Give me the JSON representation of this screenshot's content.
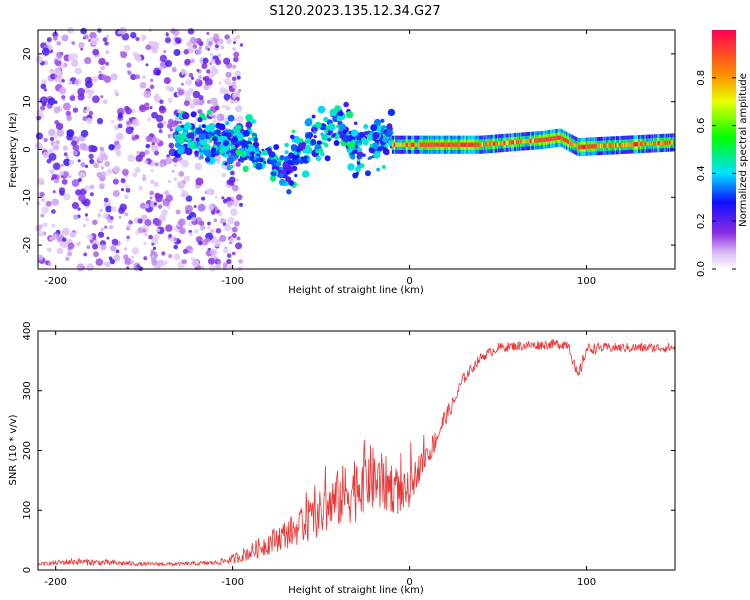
{
  "page_title": "S120.2023.135.12.34.G27",
  "chart_data": [
    {
      "type": "heatmap",
      "title": "S120.2023.135.12.34.G27",
      "xlabel": "Height of straight line (km)",
      "ylabel": "Frequency (Hz)",
      "xlim": [
        -210,
        150
      ],
      "ylim": [
        -25,
        25
      ],
      "x_ticks": [
        -200,
        -100,
        0,
        100
      ],
      "x_tick_labels": [
        "-200",
        "-100",
        "0",
        "100"
      ],
      "y_ticks": [
        -20,
        -10,
        0,
        10,
        20
      ],
      "y_tick_labels": [
        "-20",
        "-10",
        "0",
        "10",
        "20"
      ],
      "colorbar": {
        "label": "Normalized spectral amplitude",
        "range": [
          0,
          1
        ],
        "ticks": [
          0,
          0.2,
          0.4,
          0.6,
          0.8
        ],
        "tick_labels": [
          "0.0",
          "0.2",
          "0.4",
          "0.6",
          "0.8"
        ],
        "colormap": "rainbow (white → violet → blue → cyan → green → yellow → orange → red)"
      },
      "features": [
        {
          "name": "diffuse-noise",
          "x_range": [
            -210,
            -115
          ],
          "freq_range": [
            -25,
            25
          ],
          "amplitude": [
            0.05,
            0.2
          ]
        },
        {
          "name": "fragmented-tone",
          "x_range": [
            -132,
            -10
          ],
          "freq_center": [
            [
              -130,
              2
            ],
            [
              -100,
              2
            ],
            [
              -85,
              0
            ],
            [
              -75,
              -5
            ],
            [
              -65,
              -2
            ],
            [
              -50,
              3
            ],
            [
              -40,
              6
            ],
            [
              -30,
              0
            ],
            [
              -15,
              2
            ]
          ],
          "amplitude": [
            0.2,
            0.5
          ]
        },
        {
          "name": "stable-tone",
          "x_range": [
            -10,
            150
          ],
          "freq_center": [
            [
              -10,
              1
            ],
            [
              0,
              1
            ],
            [
              40,
              1
            ],
            [
              75,
              2
            ],
            [
              85,
              2.5
            ],
            [
              95,
              0.5
            ],
            [
              150,
              1.5
            ]
          ],
          "amplitude": [
            0.6,
            1.0
          ]
        }
      ]
    },
    {
      "type": "line",
      "xlabel": "Height of straight line (km)",
      "ylabel": "SNR (10 * v/v)",
      "xlim": [
        -210,
        150
      ],
      "ylim": [
        0,
        400
      ],
      "x_ticks": [
        -200,
        -100,
        0,
        100
      ],
      "x_tick_labels": [
        "-200",
        "-100",
        "0",
        "100"
      ],
      "y_ticks": [
        0,
        100,
        200,
        300,
        400
      ],
      "y_tick_labels": [
        "0",
        "100",
        "200",
        "300",
        "400"
      ],
      "series": [
        {
          "name": "SNR",
          "color": "#ee3333",
          "x": [
            -210,
            -190,
            -170,
            -150,
            -130,
            -110,
            -100,
            -90,
            -80,
            -70,
            -60,
            -50,
            -40,
            -30,
            -25,
            -20,
            -15,
            -10,
            -5,
            0,
            5,
            10,
            15,
            20,
            25,
            30,
            40,
            50,
            60,
            70,
            80,
            90,
            95,
            100,
            110,
            120,
            130,
            140,
            150
          ],
          "y": [
            10,
            14,
            12,
            10,
            10,
            12,
            18,
            30,
            45,
            60,
            75,
            95,
            120,
            140,
            160,
            150,
            145,
            140,
            125,
            135,
            170,
            190,
            220,
            255,
            280,
            318,
            355,
            372,
            375,
            376,
            378,
            378,
            320,
            370,
            372,
            372,
            372,
            372,
            372
          ],
          "noise_amplitude": [
            2,
            6,
            5,
            3,
            3,
            4,
            8,
            14,
            20,
            25,
            30,
            40,
            50,
            60,
            60,
            55,
            50,
            45,
            35,
            30,
            25,
            20,
            20,
            15,
            12,
            10,
            8,
            8,
            8,
            8,
            8,
            10,
            12,
            10,
            8,
            8,
            8,
            8,
            8
          ]
        }
      ]
    }
  ]
}
